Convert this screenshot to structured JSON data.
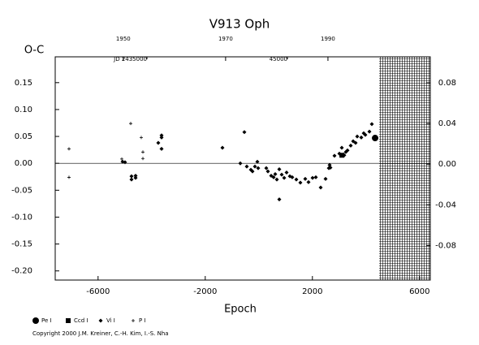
{
  "chart_data": {
    "type": "scatter",
    "title": "V913 Oph",
    "ylabel": "O-C",
    "xlabel": "Epoch",
    "copyright": "Copyright 2000 J.M. Kreiner, C.-H. Kim, I.-S. Nha",
    "xlim": [
      -7600,
      6400
    ],
    "xticks": [
      -6000,
      -2000,
      2000,
      6000
    ],
    "ylim": [
      -0.217,
      0.198
    ],
    "yticks": [
      0.15,
      {
        "value": 0.1,
        "label": "0.10"
      },
      0.05,
      {
        "value": 0,
        "label": "0.00"
      },
      -0.05,
      {
        "value": -0.1,
        "label": "-0.10"
      },
      -0.15,
      {
        "value": -0.2,
        "label": "-0.20"
      }
    ],
    "y2lim": [
      -0.114,
      0.1056
    ],
    "y2ticks": [
      0.08,
      0.04,
      {
        "value": 0,
        "label": "0.00"
      },
      -0.04,
      -0.08
    ],
    "x2lim": [
      1936.7,
      2010
    ],
    "x2ticks": [
      1950,
      1970,
      1990
    ],
    "x3lim": [
      2428468,
      2455173
    ],
    "x3ticks": [
      {
        "value": 2435000,
        "label": "JD 2435000"
      },
      {
        "value": 2445000,
        "label": "45000"
      }
    ],
    "series": [
      {
        "name": "Pe I",
        "marker": "circle",
        "color": "#000000",
        "x": [
          4340
        ],
        "values": [
          0.047
        ]
      },
      {
        "name": "Ccd I",
        "marker": "square",
        "color": "#000000",
        "x": [
          3100
        ],
        "values": [
          0.015
        ]
      },
      {
        "name": "Vi I",
        "marker": "dot",
        "color": "#000000",
        "x": [
          -5085,
          -4994,
          -4752,
          -4752,
          -4600,
          -4600,
          -3752,
          -3630,
          -3630,
          -3630,
          -1358,
          -691,
          -539,
          -449,
          -297,
          -236,
          -145,
          -55,
          -24,
          279,
          339,
          461,
          552,
          612,
          673,
          764,
          764,
          855,
          946,
          1036,
          1158,
          1248,
          1400,
          1551,
          1733,
          1855,
          2006,
          2127,
          2309,
          2491,
          2612,
          2642,
          2673,
          2824,
          3006,
          3097,
          3188,
          3248,
          3309,
          3430,
          3521,
          3612,
          3673,
          3824,
          3915,
          3976,
          4127,
          4218
        ],
        "values": [
          0.003,
          0.002,
          -0.024,
          -0.03,
          -0.023,
          -0.027,
          0.038,
          0.048,
          0.052,
          0.027,
          0.029,
          0.0,
          0.058,
          -0.006,
          -0.012,
          -0.015,
          -0.006,
          0.003,
          -0.009,
          -0.009,
          -0.015,
          -0.023,
          -0.026,
          -0.02,
          -0.03,
          -0.011,
          -0.067,
          -0.021,
          -0.027,
          -0.017,
          -0.024,
          -0.026,
          -0.03,
          -0.036,
          -0.029,
          -0.035,
          -0.027,
          -0.026,
          -0.045,
          -0.029,
          -0.009,
          -0.003,
          -0.008,
          0.014,
          0.018,
          0.029,
          0.015,
          0.021,
          0.024,
          0.033,
          0.041,
          0.038,
          0.05,
          0.048,
          0.056,
          0.053,
          0.059,
          0.073
        ]
      },
      {
        "name": "P I",
        "marker": "plus",
        "color": "#000000",
        "x": [
          -7085,
          -7085,
          -4782,
          -4388,
          -4327,
          -4327,
          -5115
        ],
        "values": [
          0.027,
          -0.026,
          0.074,
          0.048,
          0.021,
          0.009,
          0.008
        ]
      }
    ]
  }
}
